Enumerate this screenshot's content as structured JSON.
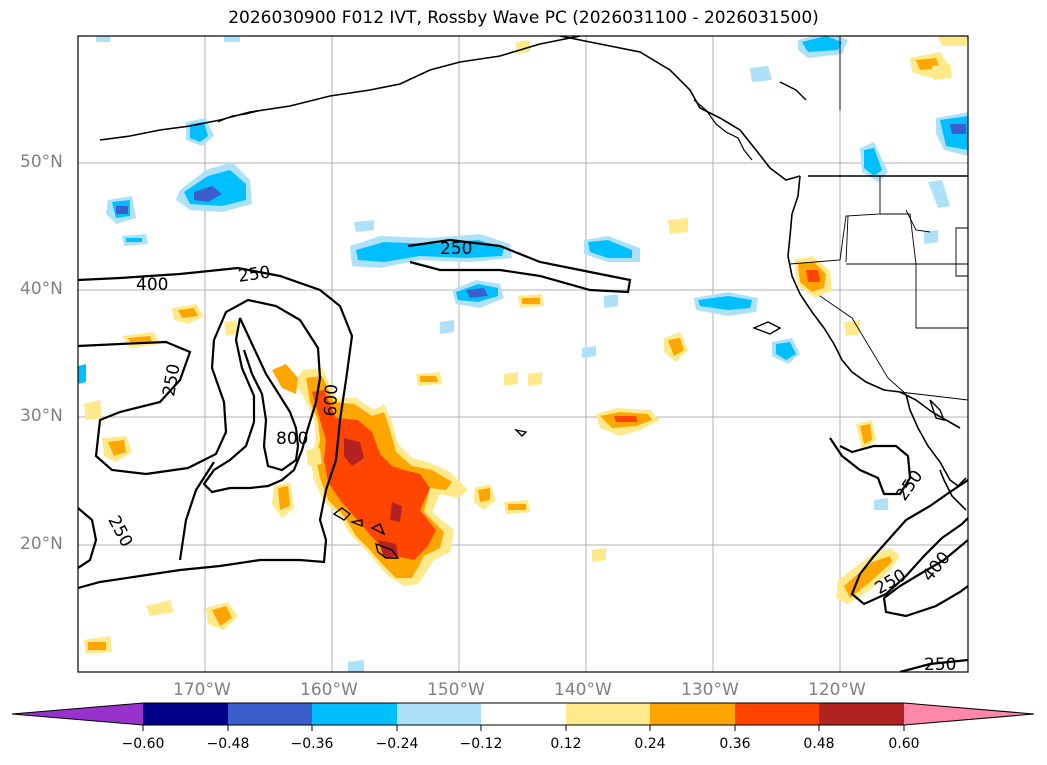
{
  "title": "2026030900 F012 IVT, Rossby Wave PC (2026031100 - 2026031500)",
  "map": {
    "lat_labels": [
      "50°N",
      "40°N",
      "30°N",
      "20°N"
    ],
    "lon_labels": [
      "170°W",
      "160°W",
      "150°W",
      "140°W",
      "130°W",
      "120°W"
    ],
    "contour_labels": [
      "250",
      "400",
      "250",
      "800",
      "600",
      "250",
      "250",
      "250",
      "400",
      "250",
      "250"
    ]
  },
  "colorbar": {
    "ticks": [
      "−0.60",
      "−0.48",
      "−0.36",
      "−0.24",
      "−0.12",
      "0.12",
      "0.24",
      "0.36",
      "0.48",
      "0.60"
    ],
    "colors": [
      "#9932CC",
      "#00008B",
      "#3A5FCD",
      "#00BFFF",
      "#ADE1FA",
      "#FFFFFF",
      "#FFE98A",
      "#FFA500",
      "#FF4500",
      "#B22222",
      "#FF88AA"
    ]
  }
}
